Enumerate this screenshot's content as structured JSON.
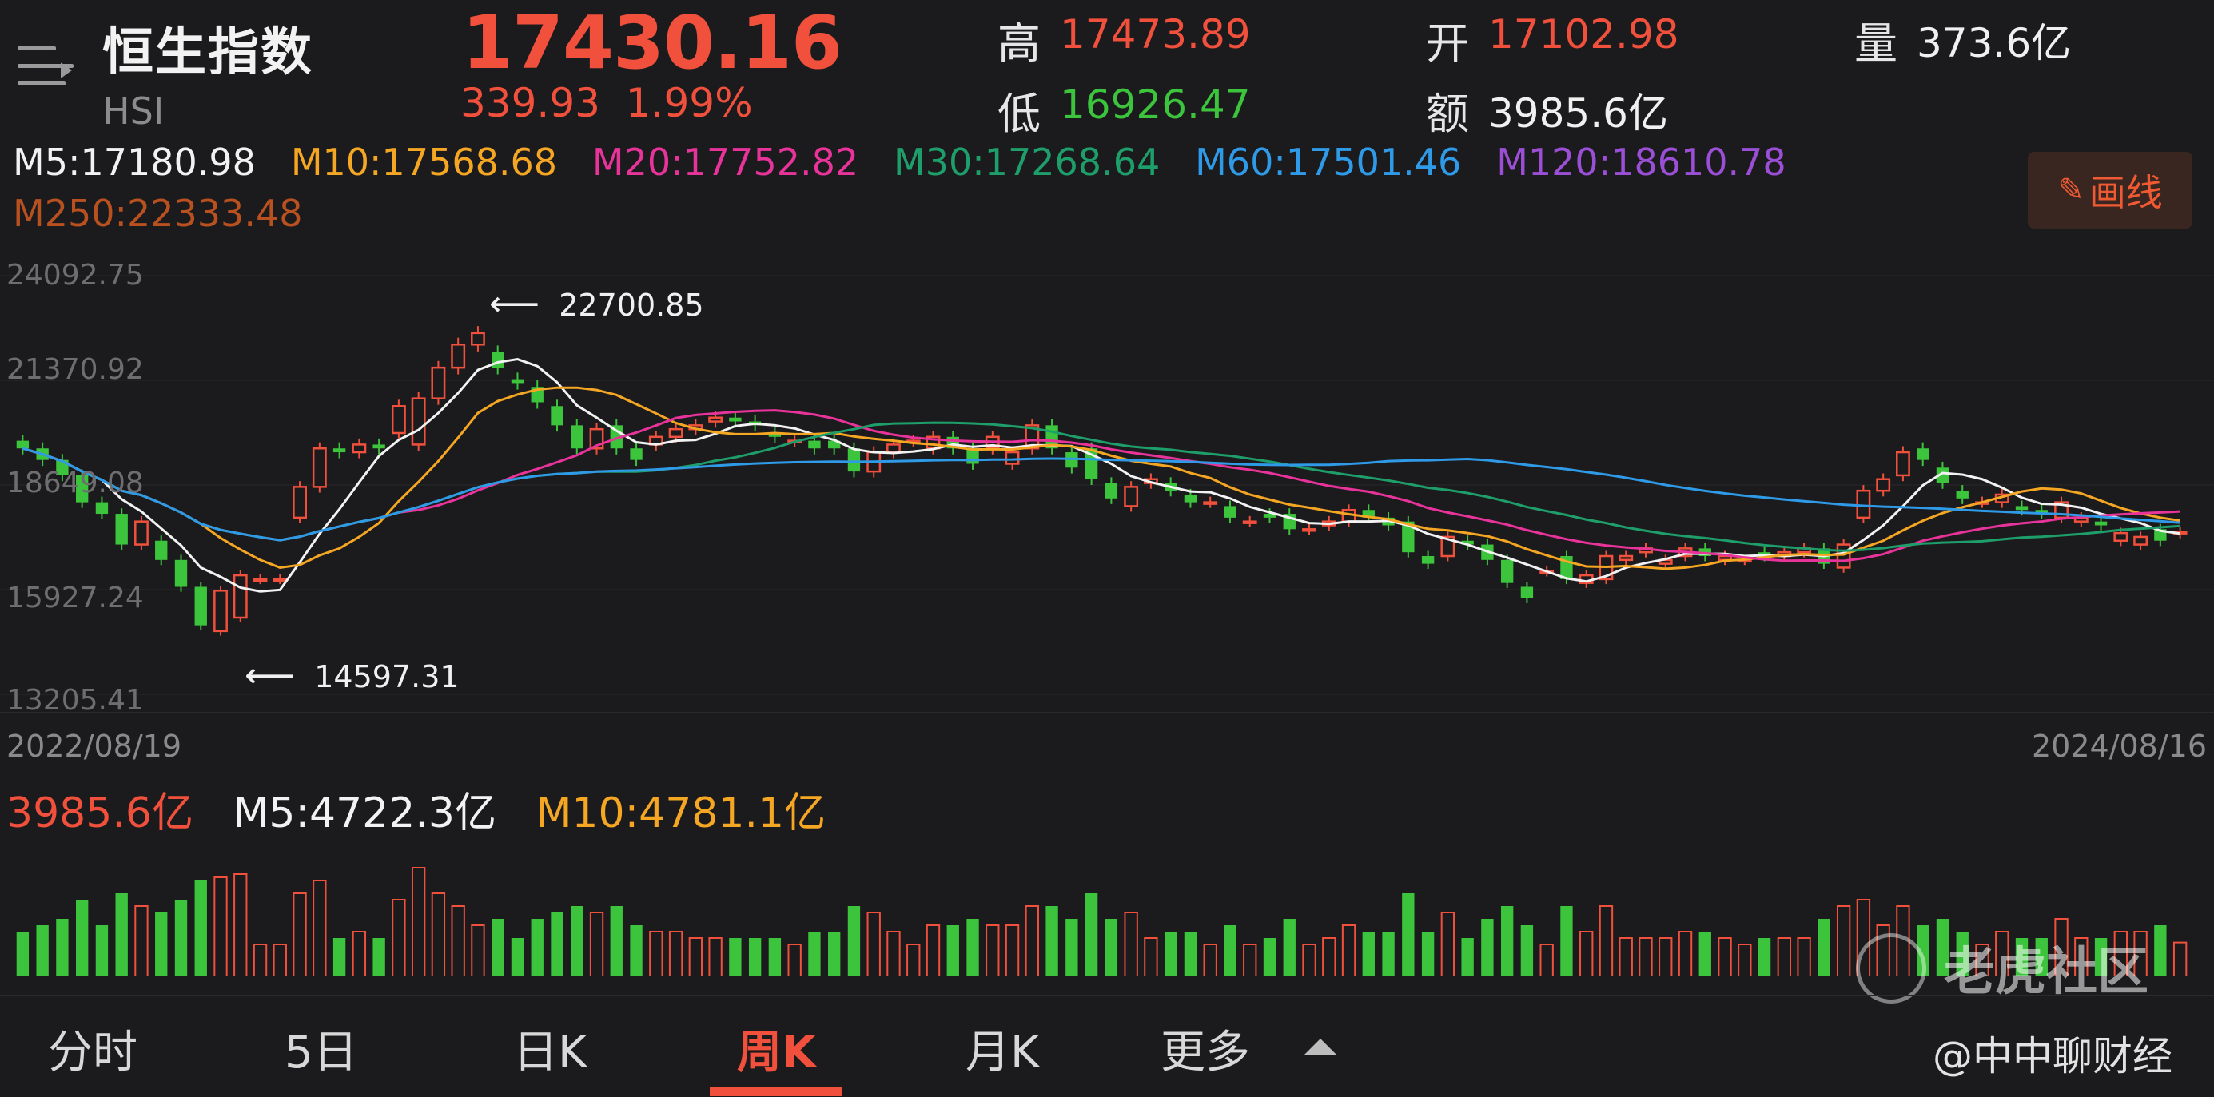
{
  "header": {
    "name": "恒生指数",
    "code": "HSI",
    "price": "17430.16",
    "change": "339.93",
    "change_pct": "1.99%",
    "high_label": "高",
    "high": "17473.89",
    "low_label": "低",
    "low": "16926.47",
    "open_label": "开",
    "open": "17102.98",
    "amount_label": "额",
    "amount": "3985.6亿",
    "volume_label": "量",
    "volume": "373.6亿"
  },
  "ma_legend": [
    {
      "label": "M5:17180.98",
      "color": "#f2f2f2"
    },
    {
      "label": "M10:17568.68",
      "color": "#f5a623"
    },
    {
      "label": "M20:17752.82",
      "color": "#e8349a"
    },
    {
      "label": "M30:17268.64",
      "color": "#1e9e6a"
    },
    {
      "label": "M60:17501.46",
      "color": "#2f9be8"
    },
    {
      "label": "M120:18610.78",
      "color": "#9b4fd6"
    },
    {
      "label": "M250:22333.48",
      "color": "#b8501f"
    }
  ],
  "draw_button": "画线",
  "y_axis": [
    "24092.75",
    "21370.92",
    "18649.08",
    "15927.24",
    "13205.41"
  ],
  "max_marker": "22700.85",
  "min_marker": "14597.31",
  "dates": {
    "start": "2022/08/19",
    "end": "2024/08/16"
  },
  "volume_legend": {
    "amount": "3985.6亿",
    "m5": "M5:4722.3亿",
    "m10": "M10:4781.1亿"
  },
  "tabs": [
    "分时",
    "5日",
    "日K",
    "周K",
    "月K",
    "更多"
  ],
  "active_tab": "周K",
  "watermark": "老虎社区",
  "credit": "@中中聊财经",
  "colors": {
    "up": "#f0503c",
    "down": "#3cc43c",
    "background": "#1b1b1d"
  },
  "icons": [
    "menu-icon",
    "pencil-icon",
    "caret-up-icon",
    "tiger-logo-icon"
  ],
  "chart_data": {
    "type": "candlestick",
    "ylim": [
      13205.41,
      24092.75
    ],
    "opens": [
      19800,
      19600,
      19300,
      18900,
      18200,
      17900,
      17100,
      17200,
      16700,
      16000,
      14850,
      15200,
      16200,
      16200,
      17800,
      18600,
      19600,
      19500,
      19700,
      20000,
      19700,
      20900,
      21700,
      22300,
      22100,
      21400,
      21200,
      20700,
      20200,
      19600,
      20200,
      19600,
      19700,
      19900,
      20100,
      20300,
      20400,
      20300,
      20000,
      19800,
      19800,
      19800,
      19600,
      19000,
      19500,
      19800,
      19600,
      19900,
      19600,
      19600,
      19200,
      19600,
      20200,
      19500,
      19600,
      18700,
      18100,
      18700,
      18700,
      18400,
      18200,
      18100,
      17700,
      17900,
      17900,
      17500,
      17600,
      17700,
      18000,
      17800,
      17700,
      16800,
      16800,
      17200,
      17100,
      16700,
      16000,
      16400,
      16800,
      16100,
      16200,
      16700,
      16900,
      16600,
      16800,
      17000,
      16700,
      16700,
      16900,
      16800,
      16900,
      17000,
      16500,
      17800,
      18500,
      18900,
      19600,
      19100,
      18500,
      18200,
      18200,
      18100,
      18000,
      17800,
      17700,
      17700,
      17200,
      17100,
      17500,
      17400
    ],
    "closes": [
      19600,
      19300,
      18900,
      18200,
      17900,
      17100,
      17700,
      16700,
      16000,
      15000,
      15900,
      16300,
      16200,
      16200,
      18600,
      19600,
      19500,
      19700,
      19600,
      20700,
      20900,
      21700,
      22300,
      22600,
      21700,
      21300,
      20800,
      20200,
      19600,
      20100,
      19600,
      19300,
      19900,
      20100,
      20200,
      20400,
      20300,
      20200,
      19900,
      19800,
      19600,
      19600,
      19000,
      19500,
      19700,
      19800,
      19900,
      19600,
      19200,
      19900,
      19500,
      20200,
      19600,
      19100,
      18800,
      18300,
      18600,
      18800,
      18500,
      18200,
      18200,
      17800,
      17700,
      17800,
      17500,
      17500,
      17700,
      18000,
      17800,
      17600,
      16900,
      16600,
      17300,
      17100,
      16700,
      16100,
      15700,
      16400,
      16200,
      16300,
      16800,
      16800,
      17000,
      16700,
      17000,
      16800,
      16800,
      16700,
      16800,
      16900,
      17000,
      16600,
      17100,
      18500,
      18800,
      19500,
      19300,
      18700,
      18300,
      18200,
      18400,
      18000,
      17900,
      18200,
      17800,
      17600,
      17400,
      17300,
      17200,
      17430
    ]
  }
}
